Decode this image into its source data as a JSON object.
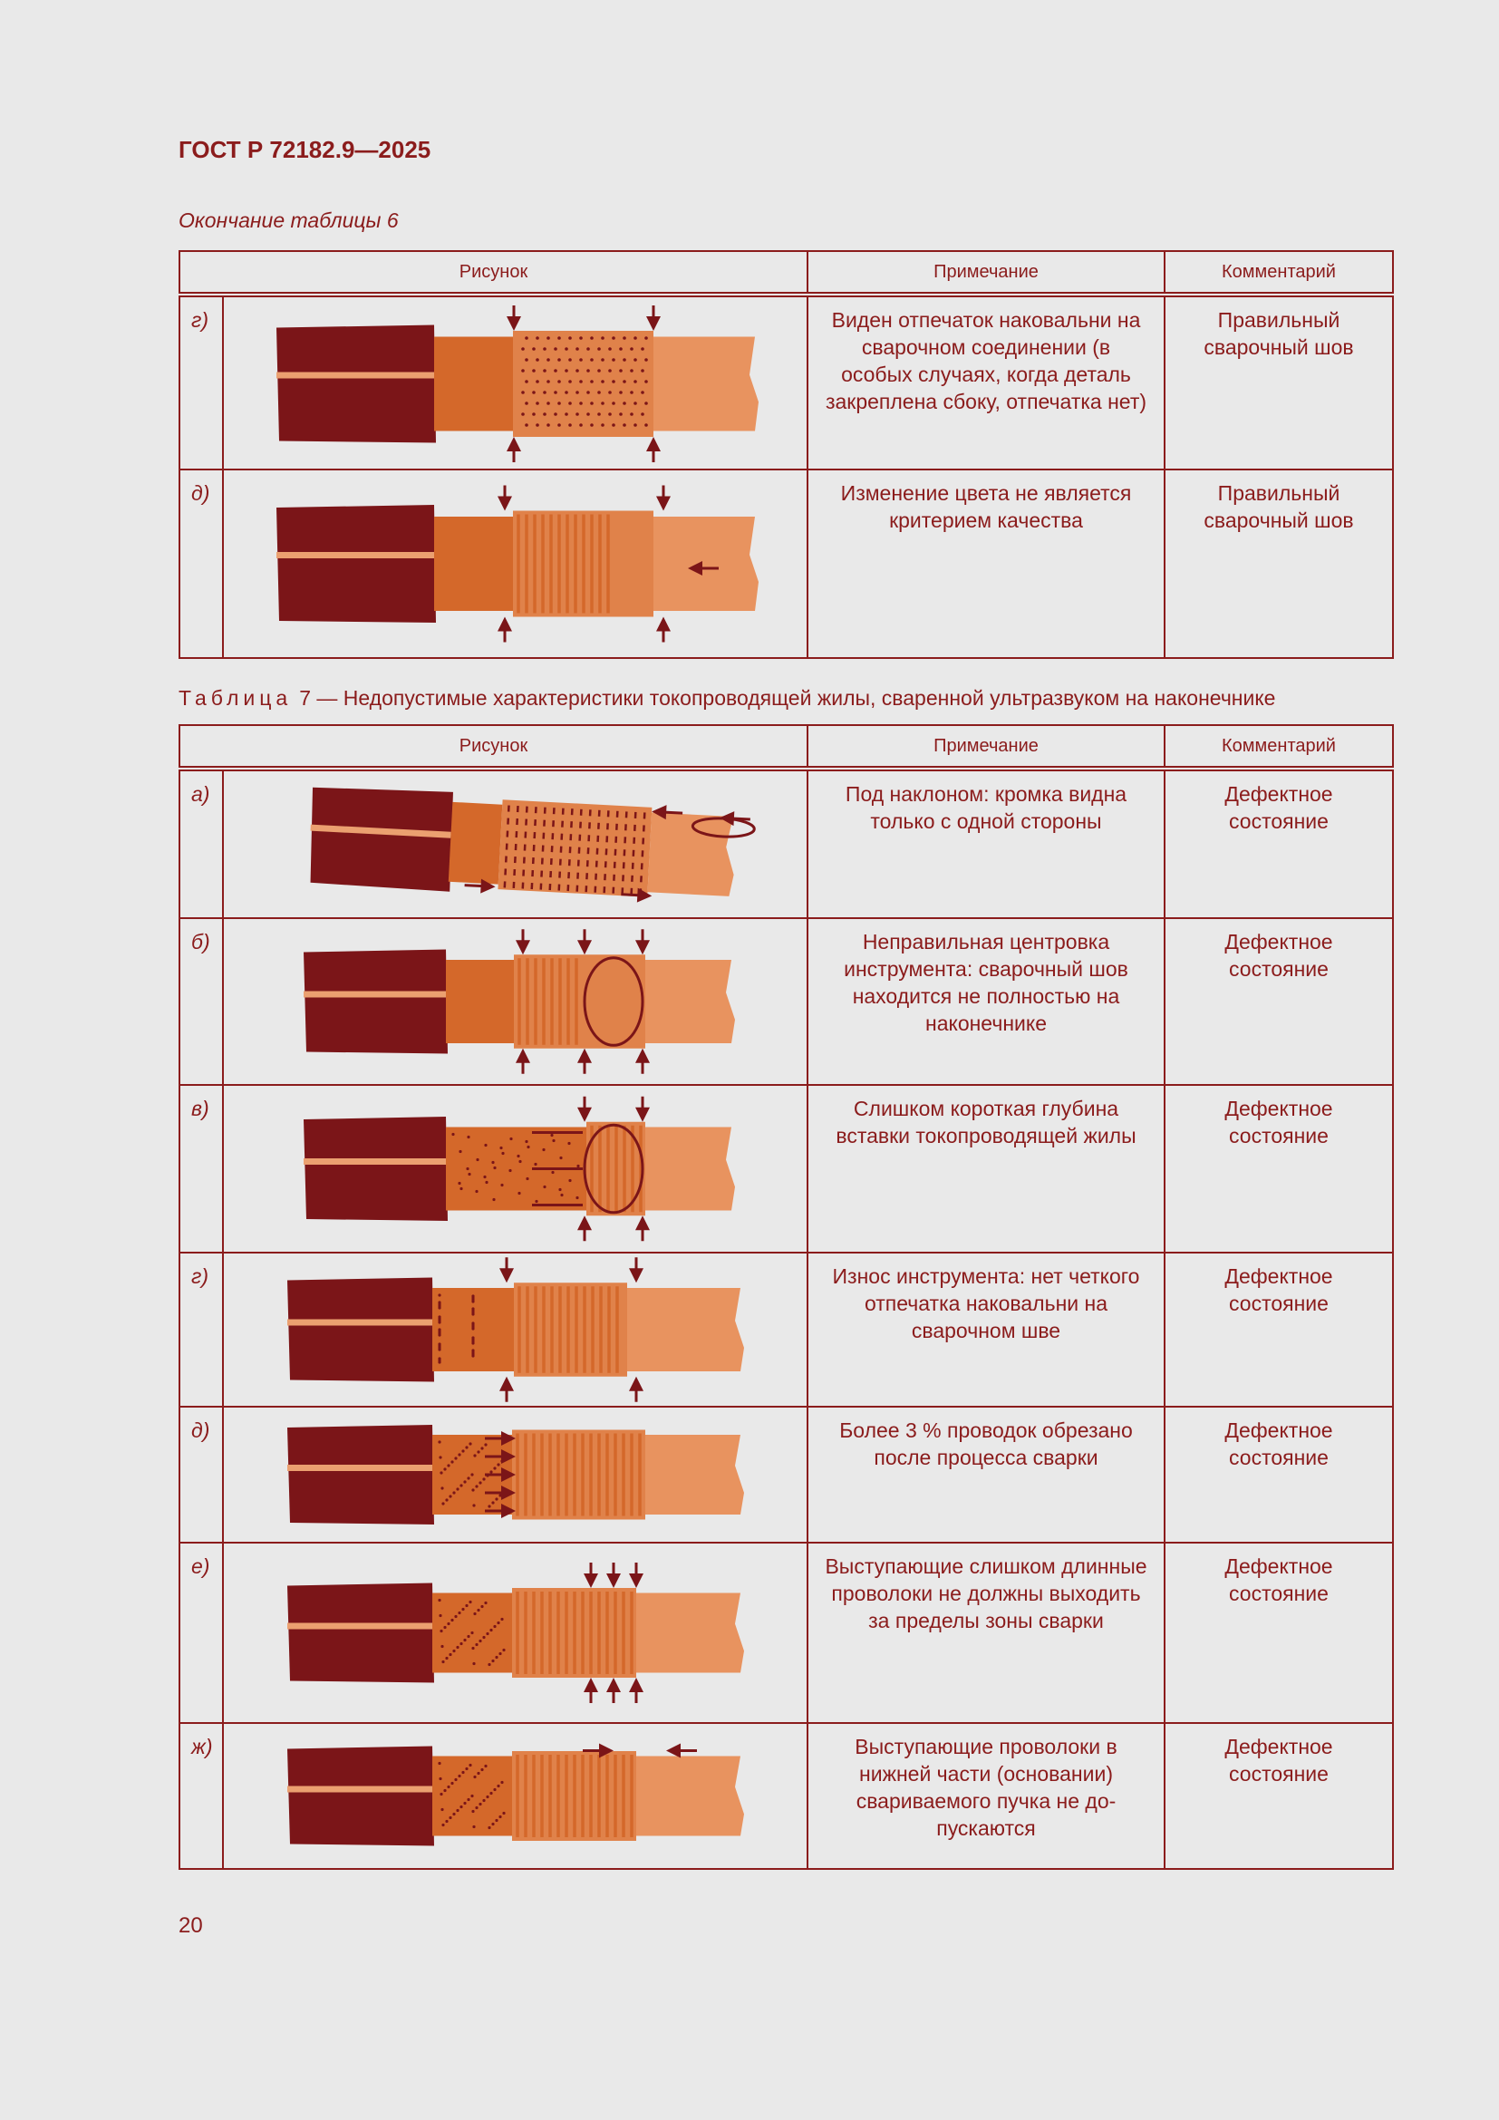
{
  "header": {
    "doc_id": "ГОСТ Р 72182.9—2025"
  },
  "table6": {
    "caption": "Окончание таблицы 6",
    "columns": [
      "Рисунок",
      "Примечание",
      "Комментарий"
    ],
    "rows": [
      {
        "label": "г)",
        "note": "Виден отпечаток наковальни на сварочном соединении (в особых случаях, когда деталь закреплена сбоку, отпечатка нет)",
        "comment": "Правильный сварочный шов"
      },
      {
        "label": "д)",
        "note": "Изменение цвета не является критерием качества",
        "comment": "Правильный сварочный шов"
      }
    ]
  },
  "table7": {
    "caption_label": "Таблица",
    "caption_text": "7 — Недопустимые характеристики токопроводящей жилы, сваренной ультразвуком на наконечнике",
    "columns": [
      "Рисунок",
      "Примечание",
      "Комментарий"
    ],
    "rows": [
      {
        "label": "а)",
        "note": "Под наклоном: кромка видна только с одной стороны",
        "comment": "Дефектное состояние"
      },
      {
        "label": "б)",
        "note": "Неправильная центровка инструмента: сварочный шов находится не полностью на наконечнике",
        "comment": "Дефектное состояние"
      },
      {
        "label": "в)",
        "note": "Слишком короткая глубина вставки токопроводящей жилы",
        "comment": "Дефектное состояние"
      },
      {
        "label": "г)",
        "note": "Износ инструмента: нет четкого отпечатка наковальни на сварочном шве",
        "comment": "Дефектное состояние"
      },
      {
        "label": "д)",
        "note": "Более 3 % проводок обрезано после процесса сварки",
        "comment": "Дефектное состояние"
      },
      {
        "label": "е)",
        "note": "Выступающие слишком длинные проволоки не должны выходить за пределы зоны сварки",
        "comment": "Дефектное состояние"
      },
      {
        "label": "ж)",
        "note": "Выступающие проволоки в нижней части (основании) свариваемого пучка не до-пускаются",
        "comment": "Дефектное состояние"
      }
    ]
  },
  "footer": {
    "page_number": "20"
  }
}
